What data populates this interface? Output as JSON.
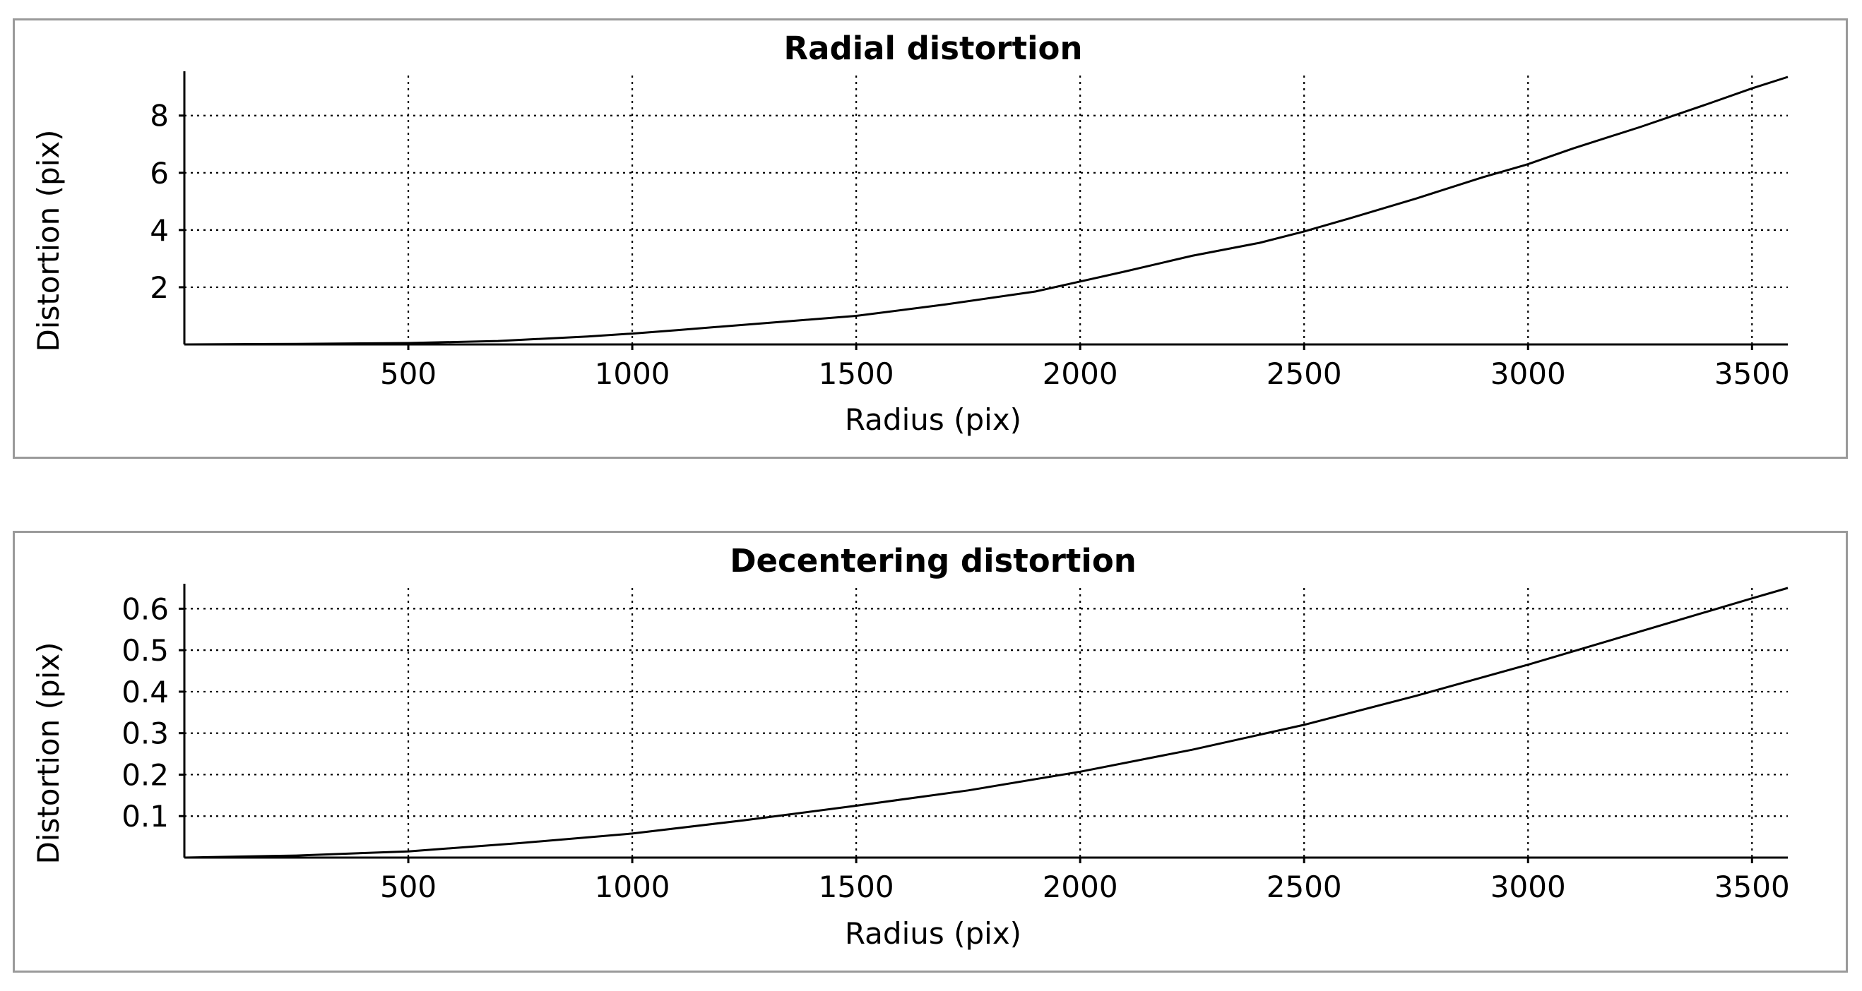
{
  "chart_data": [
    {
      "type": "line",
      "title": "Radial distortion",
      "xlabel": "Radius (pix)",
      "ylabel": "Distortion (pix)",
      "xlim": [
        0,
        3580
      ],
      "ylim": [
        0,
        9.4
      ],
      "xticks": [
        500,
        1000,
        1500,
        2000,
        2500,
        3000,
        3500
      ],
      "xtick_labels": [
        "500",
        "1000",
        "1500",
        "2000",
        "2500",
        "3000",
        "3500"
      ],
      "yticks": [
        2,
        4,
        6,
        8
      ],
      "ytick_labels": [
        "2",
        "4",
        "6",
        "8"
      ],
      "grid": true,
      "series": [
        {
          "x": [
            0,
            250,
            500,
            700,
            900,
            1000,
            1100,
            1300,
            1500,
            1700,
            1900,
            2000,
            2100,
            2250,
            2400,
            2500,
            2600,
            2750,
            2900,
            3000,
            3100,
            3250,
            3400,
            3500,
            3580
          ],
          "values": [
            0,
            0.02,
            0.05,
            0.12,
            0.28,
            0.38,
            0.5,
            0.75,
            1.0,
            1.4,
            1.85,
            2.2,
            2.55,
            3.1,
            3.55,
            3.95,
            4.4,
            5.1,
            5.85,
            6.3,
            6.85,
            7.6,
            8.4,
            8.95,
            9.35
          ]
        }
      ]
    },
    {
      "type": "line",
      "title": "Decentering distortion",
      "xlabel": "Radius (pix)",
      "ylabel": "Distortion (pix)",
      "xlim": [
        0,
        3580
      ],
      "ylim": [
        0,
        0.65
      ],
      "xticks": [
        500,
        1000,
        1500,
        2000,
        2500,
        3000,
        3500
      ],
      "xtick_labels": [
        "500",
        "1000",
        "1500",
        "2000",
        "2500",
        "3000",
        "3500"
      ],
      "yticks": [
        0.1,
        0.2,
        0.3,
        0.4,
        0.5,
        0.6
      ],
      "ytick_labels": [
        "0.1",
        "0.2",
        "0.3",
        "0.4",
        "0.5",
        "0.6"
      ],
      "grid": true,
      "series": [
        {
          "x": [
            0,
            250,
            500,
            750,
            1000,
            1250,
            1500,
            1750,
            2000,
            2250,
            2500,
            2750,
            3000,
            3250,
            3500,
            3580
          ],
          "values": [
            0,
            0.005,
            0.015,
            0.035,
            0.058,
            0.09,
            0.125,
            0.162,
            0.207,
            0.26,
            0.32,
            0.39,
            0.465,
            0.545,
            0.625,
            0.65
          ]
        }
      ]
    }
  ]
}
